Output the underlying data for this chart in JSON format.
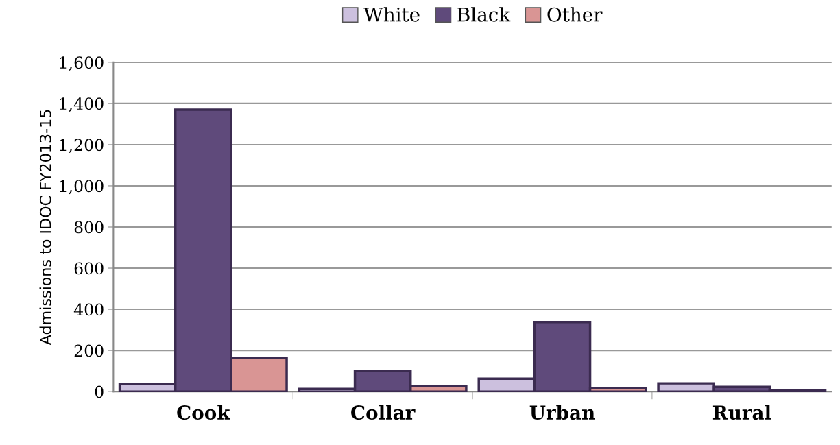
{
  "chart_data": {
    "type": "bar",
    "ylabel": "Admissions to IDOC FY2013-15",
    "categories": [
      "Cook",
      "Collar",
      "Urban",
      "Rural"
    ],
    "series": [
      {
        "name": "White",
        "color": "#ccc0de",
        "values": [
          37,
          13,
          63,
          40
        ]
      },
      {
        "name": "Black",
        "color": "#5f4a7b",
        "values": [
          1370,
          100,
          338,
          23
        ]
      },
      {
        "name": "Other",
        "color": "#d99594",
        "values": [
          164,
          27,
          17,
          7
        ]
      }
    ],
    "ylim": [
      0,
      1600
    ],
    "yticks": [
      {
        "value": 0,
        "label": "0"
      },
      {
        "value": 200,
        "label": "200"
      },
      {
        "value": 400,
        "label": "400"
      },
      {
        "value": 600,
        "label": "600"
      },
      {
        "value": 800,
        "label": "800"
      },
      {
        "value": 1000,
        "label": "1,000"
      },
      {
        "value": 1200,
        "label": "1,200"
      },
      {
        "value": 1400,
        "label": "1,400"
      },
      {
        "value": 1600,
        "label": "1,600"
      }
    ],
    "grid": "y",
    "legend": "top"
  }
}
